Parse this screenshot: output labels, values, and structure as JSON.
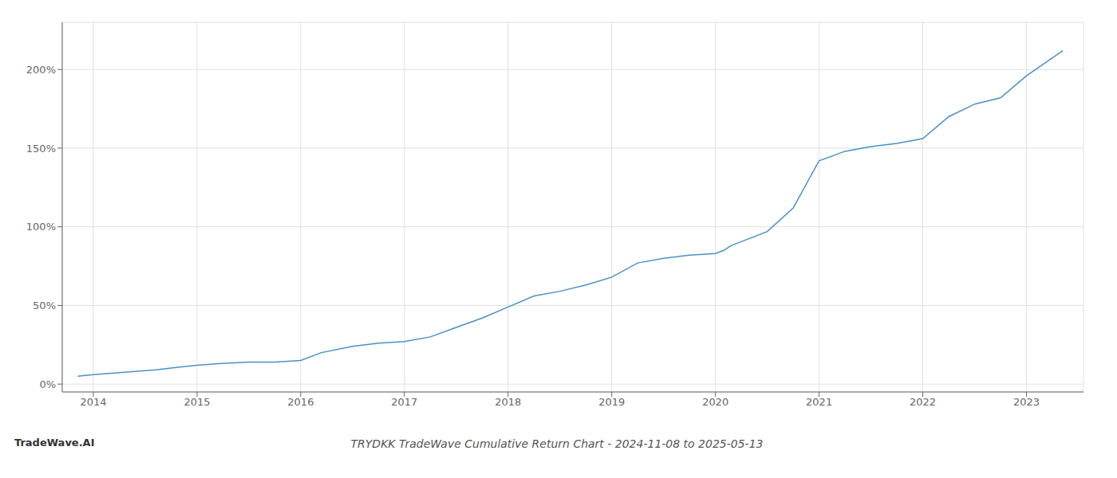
{
  "chart_data": {
    "type": "line",
    "title": "TRYDKK TradeWave Cumulative Return Chart - 2024-11-08 to 2025-05-13",
    "annotations": [
      "TradeWave.AI"
    ],
    "color": "#4a90c4",
    "x": [
      2013.85,
      2014.0,
      2014.2,
      2014.4,
      2014.6,
      2014.85,
      2015.0,
      2015.2,
      2015.5,
      2015.75,
      2016.0,
      2016.2,
      2016.5,
      2016.75,
      2017.0,
      2017.25,
      2017.5,
      2017.75,
      2018.0,
      2018.25,
      2018.5,
      2018.75,
      2019.0,
      2019.25,
      2019.5,
      2019.75,
      2020.0,
      2020.08,
      2020.15,
      2020.5,
      2020.75,
      2021.0,
      2021.25,
      2021.5,
      2021.75,
      2022.0,
      2022.25,
      2022.5,
      2022.75,
      2023.0,
      2023.35
    ],
    "values": [
      5,
      6,
      7,
      8,
      9,
      11,
      12,
      13,
      14,
      14,
      15,
      20,
      24,
      26,
      27,
      30,
      36,
      42,
      49,
      56,
      59,
      63,
      68,
      77,
      80,
      82,
      83,
      85,
      88,
      97,
      112,
      142,
      148,
      151,
      153,
      156,
      170,
      178,
      182,
      196,
      212
    ],
    "xlim": [
      2013.7,
      2023.55
    ],
    "ylim": [
      -5,
      230
    ],
    "xticks": [
      2014,
      2015,
      2016,
      2017,
      2018,
      2019,
      2020,
      2021,
      2022,
      2023
    ],
    "yticks": [
      {
        "value": 0,
        "label": "0%"
      },
      {
        "value": 50,
        "label": "50%"
      },
      {
        "value": 100,
        "label": "100%"
      },
      {
        "value": 150,
        "label": "150%"
      },
      {
        "value": 200,
        "label": "200%"
      }
    ],
    "grid": true
  }
}
